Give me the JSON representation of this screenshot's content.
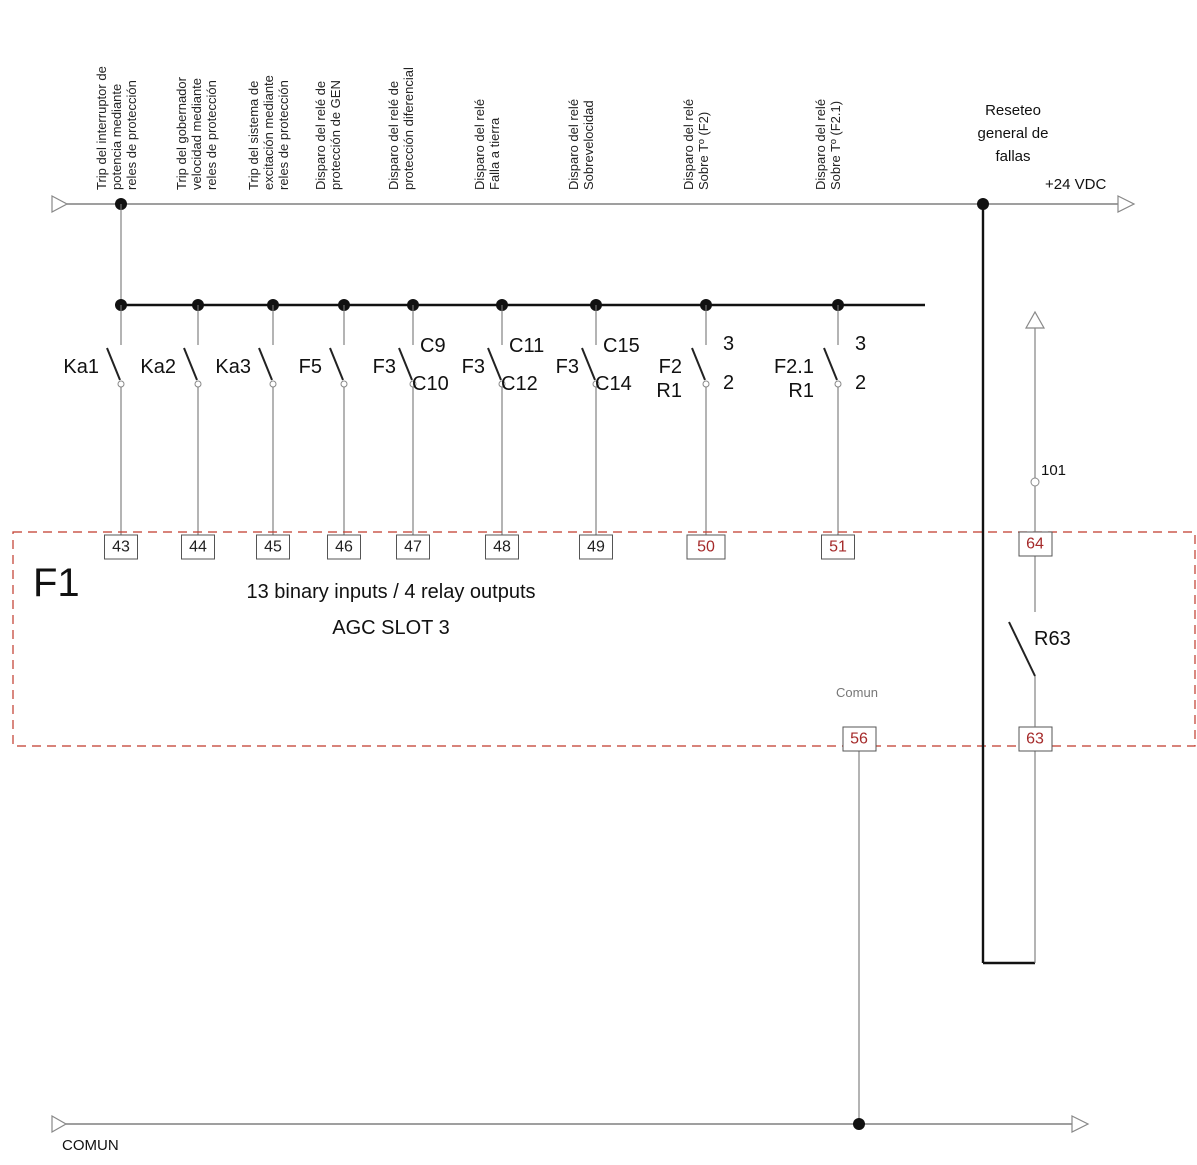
{
  "columns": [
    {
      "label_lines": [
        "Trip del interruptor de",
        "potencia mediante",
        "reles de protección"
      ],
      "terminal": "43",
      "contact": "Ka1"
    },
    {
      "label_lines": [
        "Trip del gobernador",
        "velocidad mediante",
        "reles de protección"
      ],
      "terminal": "44",
      "contact": "Ka2"
    },
    {
      "label_lines": [
        "Trip del sistema de",
        "excitación mediante",
        "reles de protección"
      ],
      "terminal": "45",
      "contact": "Ka3"
    },
    {
      "label_lines": [
        "Disparo del relé de",
        "protección de GEN"
      ],
      "terminal": "46",
      "contact": "F5"
    },
    {
      "label_lines": [
        "Disparo del relé de",
        "protección diferencial"
      ],
      "terminal": "47",
      "contact": "F3",
      "contact_top": "C9",
      "contact_bottom": "C10"
    },
    {
      "label_lines": [
        "Disparo del relé",
        "Falla a tierra"
      ],
      "terminal": "48",
      "contact": "F3",
      "contact_top": "C11",
      "contact_bottom": "C12"
    },
    {
      "label_lines": [
        "Disparo del relé",
        "Sobrevelocidad"
      ],
      "terminal": "49",
      "contact": "F3",
      "contact_top": "C15",
      "contact_bottom": "C14"
    },
    {
      "label_lines": [
        "Disparo del relé",
        "Sobre Tº (F2)"
      ],
      "terminal": "50",
      "contact": "F2",
      "contact_sub": "R1",
      "contact_top": "3",
      "contact_bottom": "2"
    },
    {
      "label_lines": [
        "Disparo del relé",
        "Sobre Tº (F2.1)"
      ],
      "terminal": "51",
      "contact": "F2.1",
      "contact_sub": "R1",
      "contact_top": "3",
      "contact_bottom": "2"
    }
  ],
  "reset": {
    "lines": [
      "Reseteo",
      "general de",
      "fallas"
    ]
  },
  "supply_label": "+24 VDC",
  "common_label": "COMUN",
  "module": {
    "name": "F1",
    "line1": "13 binary inputs / 4 relay outputs",
    "line2": "AGC  SLOT 3",
    "comun_small": "Comun",
    "terminal_common": "56",
    "terminal_64": "64",
    "terminal_63": "63",
    "relay_label": "R63"
  },
  "node_101": "101",
  "colors": {
    "module_frame": "#c0392b",
    "terminal_red": "#a52a2a",
    "wire": "#111111"
  }
}
